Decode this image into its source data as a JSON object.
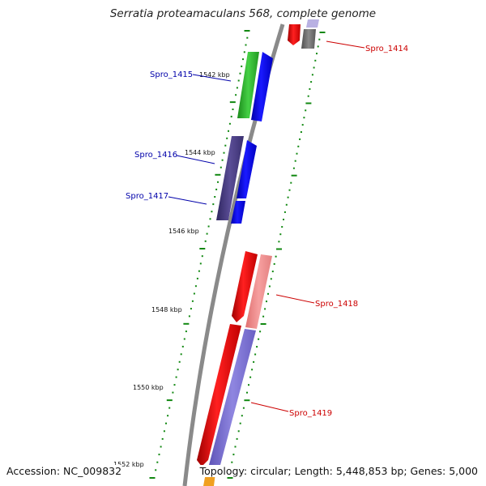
{
  "title": "Serratia proteamaculans 568, complete genome",
  "accession_text": "Accession: NC_009832",
  "summary_text": "Topology: circular; Length: 5,448,853 bp; Genes: 5,000",
  "kbp_labels": [
    "1542 kbp",
    "1544 kbp",
    "1546 kbp",
    "1548 kbp",
    "1550 kbp",
    "1552 kbp"
  ],
  "genes": [
    {
      "label": "Spro_1414",
      "color": "#cc0000"
    },
    {
      "label": "Spro_1415",
      "color": "#0000aa"
    },
    {
      "label": "Spro_1416",
      "color": "#0000aa"
    },
    {
      "label": "Spro_1417",
      "color": "#0000aa"
    },
    {
      "label": "Spro_1418",
      "color": "#cc0000"
    },
    {
      "label": "Spro_1419",
      "color": "#cc0000"
    }
  ],
  "colors": {
    "backbone": "#888888",
    "tick": "#118811",
    "red": "#ff0000",
    "pink": "#f08a8a",
    "blue": "#0000ee",
    "purple": "#45397a",
    "slate": "#7b72cc",
    "green": "#2fb52f",
    "gray": "#6b6b6b",
    "orange": "#f0a020",
    "lavender": "#b9b1e3"
  }
}
